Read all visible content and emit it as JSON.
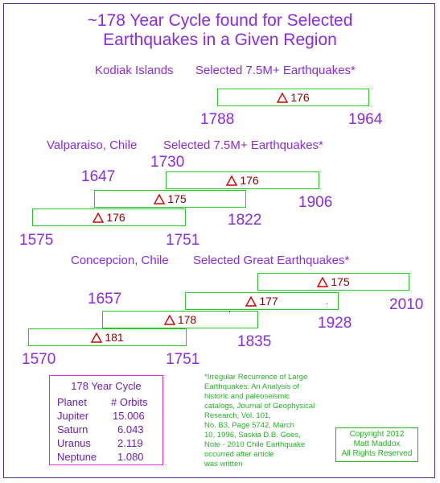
{
  "title": {
    "line1": "~178 Year Cycle found for Selected",
    "line2": "Earthquakes in a Given Region"
  },
  "sections": {
    "kodiak": {
      "region": "Kodiak Islands",
      "label": "Selected 7.5M+ Earthquakes*",
      "spans": [
        {
          "start": "1788",
          "end": "1964",
          "years": "176"
        }
      ]
    },
    "valparaiso": {
      "region": "Valparaiso, Chile",
      "label": "Selected 7.5M+ Earthquakes*",
      "spans": [
        {
          "start": "1730",
          "end": "1906",
          "years": "176"
        },
        {
          "start": "1647",
          "end": "1822",
          "years": "175"
        },
        {
          "start": "1575",
          "end": "1751",
          "years": "176"
        }
      ]
    },
    "concepcion": {
      "region": "Concepcion, Chile",
      "label": "Selected Great Earthquakes*",
      "spans": [
        {
          "start": "1835",
          "end": "2010",
          "years": "175"
        },
        {
          "start": "1751",
          "end": "1928",
          "years": "177"
        },
        {
          "start": "1657",
          "end": "1835",
          "years": "178"
        },
        {
          "start": "1570",
          "end": "1751",
          "years": "181"
        }
      ]
    }
  },
  "legend": {
    "title": "178 Year Cycle",
    "col_planet": "Planet",
    "col_orbits": "# Orbits",
    "rows": [
      {
        "planet": "Jupiter",
        "orbits": "15.006"
      },
      {
        "planet": "Saturn",
        "orbits": "6.043"
      },
      {
        "planet": "Uranus",
        "orbits": "2.119"
      },
      {
        "planet": "Neptune",
        "orbits": "1.080"
      }
    ]
  },
  "reference": {
    "lines": [
      "*Irregular Recurrence of Large",
      "Earthquakes: An Analysis of",
      "historic and paleoseismic",
      "catalogs, Journal of Geophysical",
      "Research, Vol. 101,",
      "No. B3, Page 5742, March",
      "10, 1996, Saskia D.B. Goes,",
      "Note - 2010 Chile Earthquake",
      "occurred after article",
      "was written"
    ]
  },
  "copyright": {
    "lines": [
      "Copyright 2012",
      "Matt Maddox",
      "All Rights Reserved"
    ]
  },
  "colors": {
    "title": "#8a2be2",
    "box_border": "#22c922",
    "triangle": "#d40000",
    "span_value": "#8b0000",
    "legend_border": "#e62bd0",
    "reference_text": "#22b322"
  }
}
